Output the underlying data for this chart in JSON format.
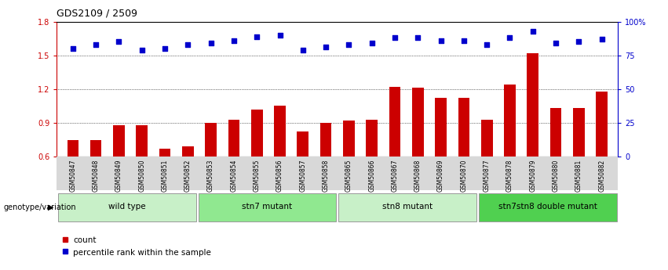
{
  "title": "GDS2109 / 2509",
  "samples": [
    "GSM50847",
    "GSM50848",
    "GSM50849",
    "GSM50850",
    "GSM50851",
    "GSM50852",
    "GSM50853",
    "GSM50854",
    "GSM50855",
    "GSM50856",
    "GSM50857",
    "GSM50858",
    "GSM50865",
    "GSM50866",
    "GSM50867",
    "GSM50868",
    "GSM50869",
    "GSM50870",
    "GSM50877",
    "GSM50878",
    "GSM50879",
    "GSM50880",
    "GSM50881",
    "GSM50882"
  ],
  "counts": [
    0.75,
    0.75,
    0.88,
    0.88,
    0.67,
    0.69,
    0.9,
    0.93,
    1.02,
    1.05,
    0.82,
    0.9,
    0.92,
    0.93,
    1.22,
    1.21,
    1.12,
    1.12,
    0.93,
    1.24,
    1.52,
    1.03,
    1.03,
    1.18
  ],
  "percentiles": [
    80,
    83,
    85,
    79,
    80,
    83,
    84,
    86,
    89,
    90,
    79,
    81,
    83,
    84,
    88,
    88,
    86,
    86,
    83,
    88,
    93,
    84,
    85,
    87
  ],
  "groups": [
    {
      "label": "wild type",
      "start": 0,
      "end": 6,
      "color": "#c8f0c8"
    },
    {
      "label": "stn7 mutant",
      "start": 6,
      "end": 12,
      "color": "#90e890"
    },
    {
      "label": "stn8 mutant",
      "start": 12,
      "end": 18,
      "color": "#c8f0c8"
    },
    {
      "label": "stn7stn8 double mutant",
      "start": 18,
      "end": 24,
      "color": "#50d050"
    }
  ],
  "ylim_left": [
    0.6,
    1.8
  ],
  "ylim_right": [
    0,
    100
  ],
  "yticks_left": [
    0.6,
    0.9,
    1.2,
    1.5,
    1.8
  ],
  "yticks_right": [
    0,
    25,
    50,
    75,
    100
  ],
  "bar_color": "#cc0000",
  "dot_color": "#0000cc",
  "bg_color": "#ffffff",
  "genotype_label": "genotype/variation",
  "legend_count": "count",
  "legend_pct": "percentile rank within the sample",
  "ytick_labels_left": [
    "0.6",
    "0.9",
    "1.2",
    "1.5",
    "1.8"
  ],
  "ytick_labels_right": [
    "0",
    "25",
    "50",
    "75",
    "100%"
  ]
}
